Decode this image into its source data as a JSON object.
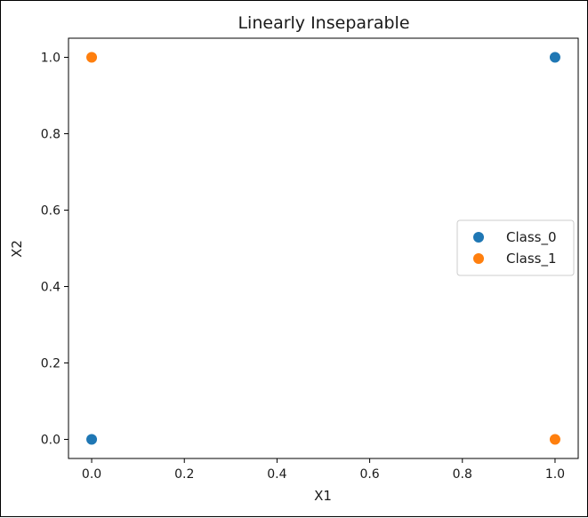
{
  "chart_data": {
    "type": "scatter",
    "title": "Linearly Inseparable",
    "xlabel": "X1",
    "ylabel": "X2",
    "xlim": [
      -0.05,
      1.05
    ],
    "ylim": [
      -0.05,
      1.05
    ],
    "xticks": [
      0.0,
      0.2,
      0.4,
      0.6,
      0.8,
      1.0
    ],
    "yticks": [
      0.0,
      0.2,
      0.4,
      0.6,
      0.8,
      1.0
    ],
    "xtick_labels": [
      "0.0",
      "0.2",
      "0.4",
      "0.6",
      "0.8",
      "1.0"
    ],
    "ytick_labels": [
      "0.0",
      "0.2",
      "0.4",
      "0.6",
      "0.8",
      "1.0"
    ],
    "grid": false,
    "legend_position": "center-right",
    "series": [
      {
        "name": "Class_0",
        "color": "#1f77b4",
        "points": [
          [
            0,
            0
          ],
          [
            1,
            1
          ]
        ]
      },
      {
        "name": "Class_1",
        "color": "#ff7f0e",
        "points": [
          [
            0,
            1
          ],
          [
            1,
            0
          ]
        ]
      }
    ]
  }
}
